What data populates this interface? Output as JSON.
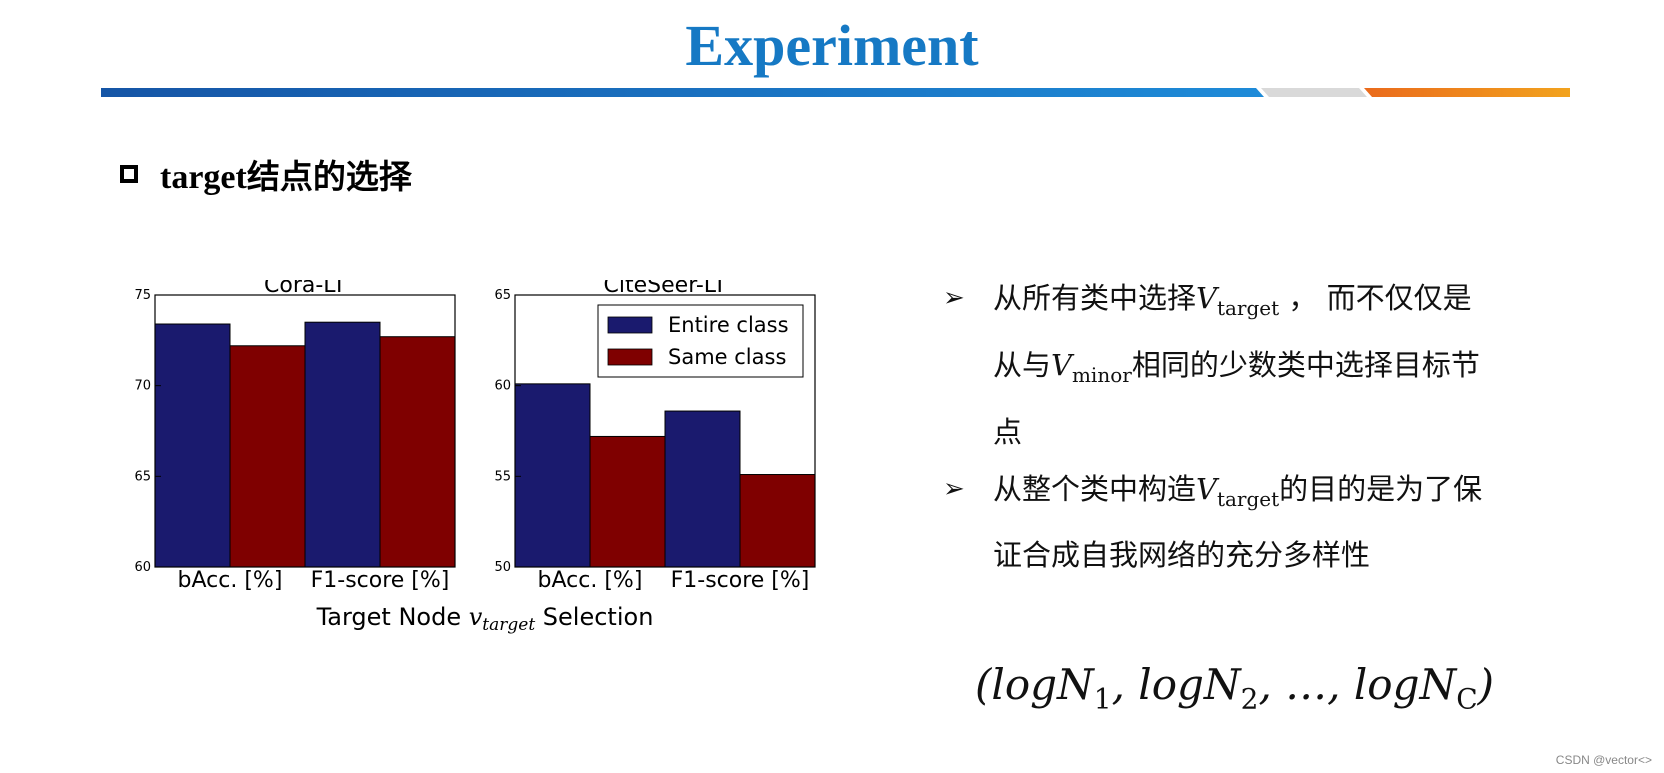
{
  "slide": {
    "title": "Experiment",
    "section_title_latin": "target",
    "section_title_zh": "结点的选择",
    "watermark": "CSDN @vector<>",
    "colors": {
      "title": "#1679c4",
      "bar_blue": "#1a1a6e",
      "bar_red": "#7f0000"
    }
  },
  "chart_data": [
    {
      "type": "bar",
      "title": "Cora-LT",
      "categories": [
        "bAcc. [%]",
        "F1-score [%]"
      ],
      "series": [
        {
          "name": "Entire class",
          "values": [
            73.4,
            73.5
          ]
        },
        {
          "name": "Same class",
          "values": [
            72.2,
            72.7
          ]
        }
      ],
      "ylim": [
        60,
        75
      ],
      "yticks": [
        60,
        65,
        70,
        75
      ],
      "legend": "none"
    },
    {
      "type": "bar",
      "title": "CiteSeer-LT",
      "categories": [
        "bAcc. [%]",
        "F1-score [%]"
      ],
      "series": [
        {
          "name": "Entire class",
          "values": [
            60.1,
            58.6
          ]
        },
        {
          "name": "Same class",
          "values": [
            57.2,
            55.1
          ]
        }
      ],
      "ylim": [
        50,
        65
      ],
      "yticks": [
        50,
        55,
        60,
        65
      ],
      "legend": "top-right"
    }
  ],
  "chart_xlabel": {
    "before": "Target Node ",
    "sym": "v",
    "sub": "target",
    "after": " Selection"
  },
  "bullets": [
    {
      "mark": "➢",
      "parts": [
        {
          "t": "从所有类中选择"
        },
        {
          "sym": "V",
          "sub": "target"
        },
        {
          "t": " ， 而不仅仅是从与"
        },
        {
          "sym": "V",
          "sub": "minor"
        },
        {
          "t": "相同的少数类中选择目标节点"
        }
      ]
    },
    {
      "mark": "➢",
      "parts": [
        {
          "t": "从整个类中构造"
        },
        {
          "sym": "V",
          "sub": "target"
        },
        {
          "t": "的目的是为了保证合成自我网络的充分多样性"
        }
      ]
    }
  ],
  "formula": {
    "open": "(",
    "terms": [
      {
        "base": "logN",
        "sub": "1"
      },
      {
        "base": "logN",
        "sub": "2"
      },
      {
        "base": "…",
        "sub": ""
      },
      {
        "base": "logN",
        "sub": "C"
      }
    ],
    "sep": ", ",
    "close": ")"
  }
}
